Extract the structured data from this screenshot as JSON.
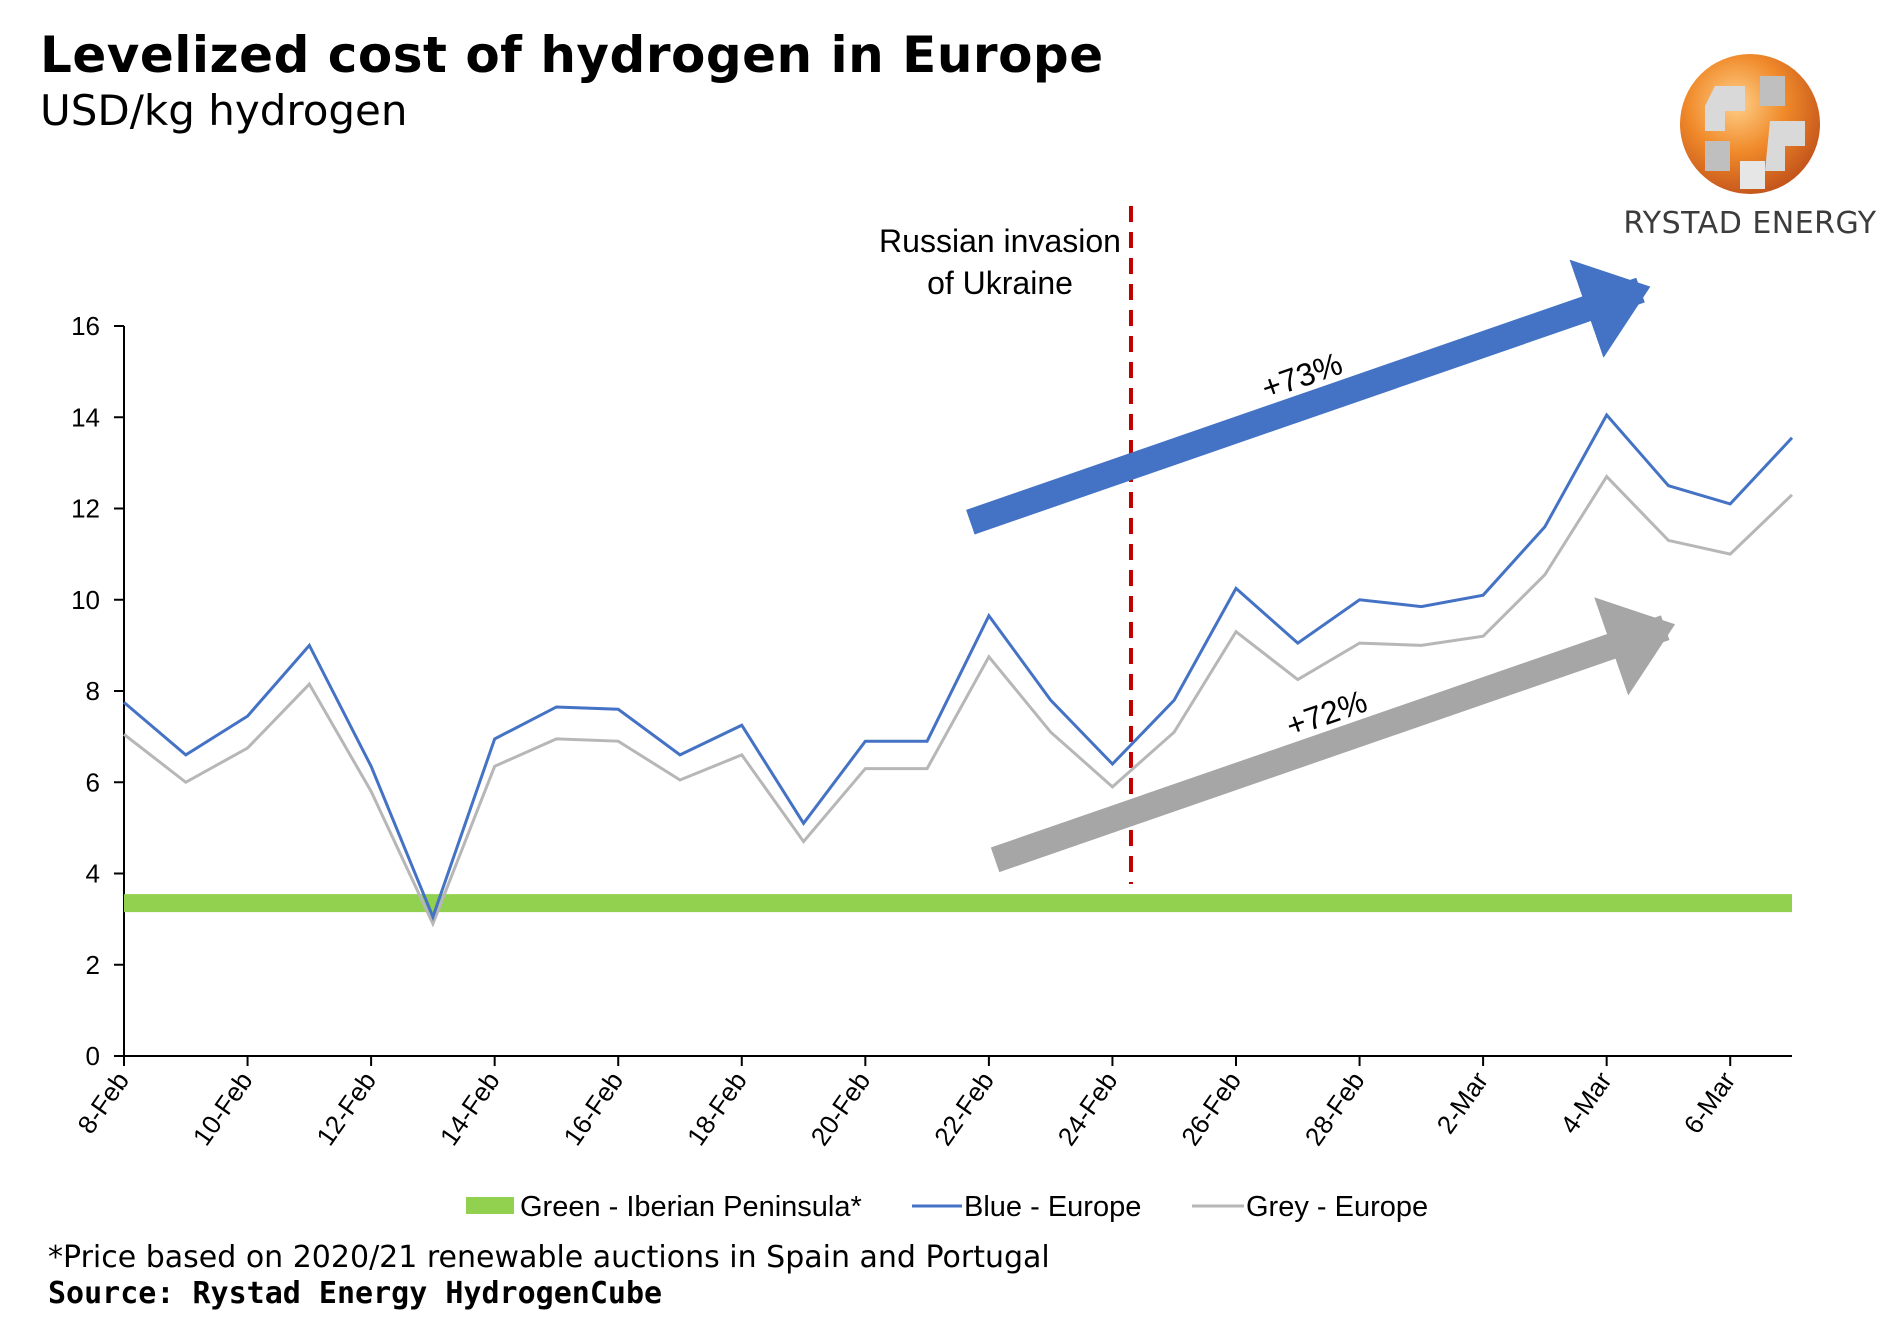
{
  "header": {
    "title": "Levelized cost of hydrogen in Europe",
    "subtitle": "USD/kg hydrogen"
  },
  "logo": {
    "text": "RYSTAD ENERGY",
    "icon": "globe-logo-icon"
  },
  "footer": {
    "footnote": "*Price based on 2020/21 renewable auctions in Spain and Portugal",
    "source": "Source: Rystad Energy HydrogenCube"
  },
  "chart_data": {
    "type": "line",
    "title": "Levelized cost of hydrogen in Europe",
    "subtitle": "USD/kg hydrogen",
    "ylim": [
      0,
      16
    ],
    "yticks": [
      0,
      2,
      4,
      6,
      8,
      10,
      12,
      14,
      16
    ],
    "x": [
      "8-Feb",
      "9-Feb",
      "10-Feb",
      "11-Feb",
      "12-Feb",
      "13-Feb",
      "14-Feb",
      "15-Feb",
      "16-Feb",
      "17-Feb",
      "18-Feb",
      "19-Feb",
      "20-Feb",
      "21-Feb",
      "22-Feb",
      "23-Feb",
      "24-Feb",
      "25-Feb",
      "26-Feb",
      "27-Feb",
      "28-Feb",
      "1-Mar",
      "2-Mar",
      "3-Mar",
      "4-Mar",
      "5-Mar",
      "6-Mar",
      "7-Mar"
    ],
    "xtick_labels": [
      "8-Feb",
      "10-Feb",
      "12-Feb",
      "14-Feb",
      "16-Feb",
      "18-Feb",
      "20-Feb",
      "22-Feb",
      "24-Feb",
      "26-Feb",
      "28-Feb",
      "2-Mar",
      "4-Mar",
      "6-Mar"
    ],
    "series": [
      {
        "name": "Green - Iberian Peninsula*",
        "color": "#92d050",
        "values": [
          3.35,
          3.35,
          3.35,
          3.35,
          3.35,
          3.35,
          3.35,
          3.35,
          3.35,
          3.35,
          3.35,
          3.35,
          3.35,
          3.35,
          3.35,
          3.35,
          3.35,
          3.35,
          3.35,
          3.35,
          3.35,
          3.35,
          3.35,
          3.35,
          3.35,
          3.35,
          3.35,
          3.35
        ]
      },
      {
        "name": "Blue - Europe",
        "color": "#4472c4",
        "values": [
          7.75,
          6.6,
          7.45,
          9.0,
          6.35,
          3.05,
          6.95,
          7.65,
          7.6,
          6.6,
          7.25,
          5.1,
          6.9,
          6.9,
          9.65,
          7.8,
          6.4,
          7.8,
          10.25,
          9.05,
          10.0,
          9.85,
          10.1,
          11.6,
          14.05,
          12.5,
          12.1,
          13.55
        ]
      },
      {
        "name": "Grey - Europe",
        "color": "#b7b7b7",
        "values": [
          7.05,
          6.0,
          6.75,
          8.15,
          5.8,
          2.9,
          6.35,
          6.95,
          6.9,
          6.05,
          6.6,
          4.7,
          6.3,
          6.3,
          8.75,
          7.1,
          5.9,
          7.1,
          9.3,
          8.25,
          9.05,
          9.0,
          9.2,
          10.55,
          12.7,
          11.3,
          11.0,
          12.3
        ]
      }
    ],
    "event": {
      "label_line1": "Russian invasion",
      "label_line1b": "of Ukraine",
      "x_index": 16.3,
      "color": "#c00000"
    },
    "annotations": [
      {
        "label": "+73%",
        "color": "#4472c4",
        "from": [
          13.7,
          11.7
        ],
        "to": [
          25.0,
          17.0
        ]
      },
      {
        "label": "+72%",
        "color": "#a6a6a6",
        "from": [
          14.1,
          4.3
        ],
        "to": [
          25.4,
          9.6
        ]
      }
    ],
    "legend": "bottom",
    "grid": false
  }
}
